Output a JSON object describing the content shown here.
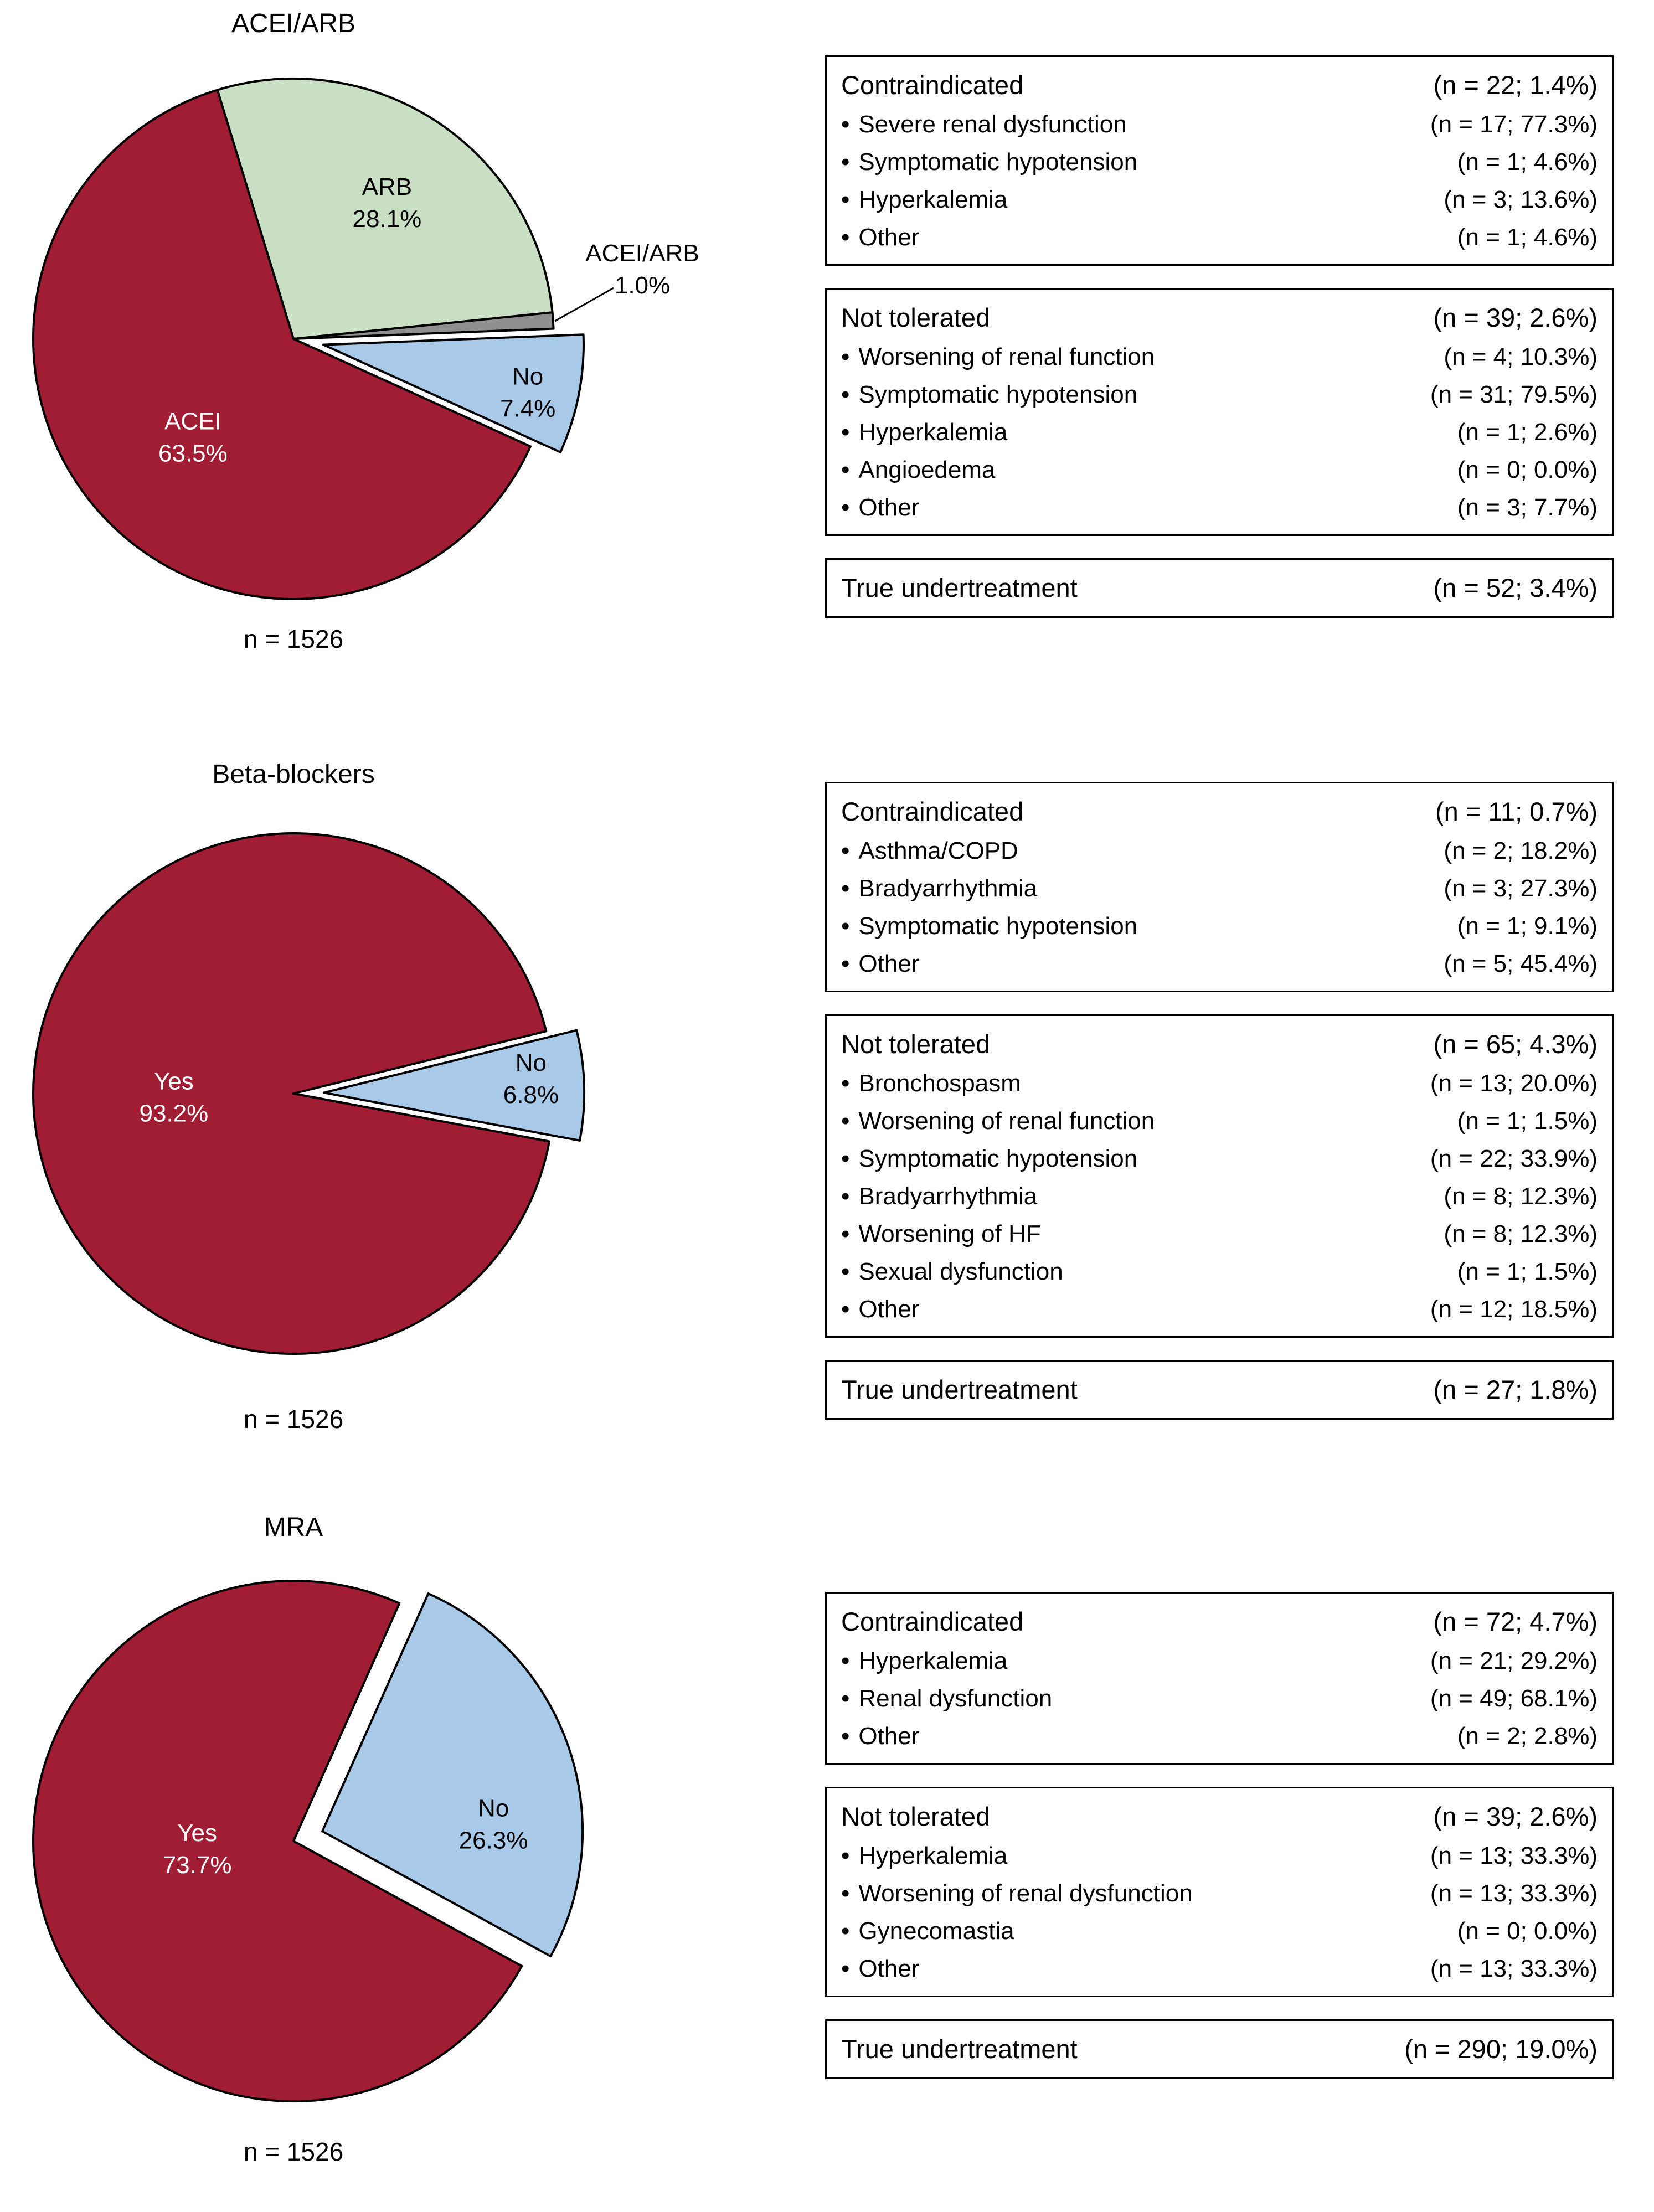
{
  "colors": {
    "yes_red": "#a11d33",
    "arb_green": "#c9e0c4",
    "no_blue": "#a9c9e9",
    "both_gray": "#8f8f8f",
    "outline_black": "#000000",
    "label_white": "#ffffff"
  },
  "chart_data": [
    {
      "type": "pie",
      "title": "ACEI/ARB",
      "sample_label": "n = 1526",
      "categories": [
        "ARB",
        "ACEI/ARB",
        "No",
        "ACEI"
      ],
      "values": [
        28.1,
        1.0,
        7.4,
        63.5
      ],
      "slices": [
        {
          "name": "ARB",
          "label": "ARB",
          "value_label": "28.1%",
          "value": 28.1,
          "color": "#c9e0c4",
          "text_color": "#000000"
        },
        {
          "name": "ACEI/ARB",
          "label": "ACEI/ARB",
          "value_label": "1.0%",
          "value": 1.0,
          "color": "#8f8f8f",
          "text_color": "#000000"
        },
        {
          "name": "No",
          "label": "No",
          "value_label": "7.4%",
          "value": 7.4,
          "color": "#a9c9e9",
          "text_color": "#000000"
        },
        {
          "name": "ACEI",
          "label": "ACEI",
          "value_label": "63.5%",
          "value": 63.5,
          "color": "#a11d33",
          "text_color": "#ffffff"
        }
      ],
      "tables": [
        {
          "title": "Contraindicated",
          "value": "(n = 22; 1.4%)",
          "rows": [
            {
              "label": "Severe renal dysfunction",
              "value": "(n = 17; 77.3%)"
            },
            {
              "label": "Symptomatic hypotension",
              "value": "(n = 1; 4.6%)"
            },
            {
              "label": "Hyperkalemia",
              "value": "(n = 3; 13.6%)"
            },
            {
              "label": "Other",
              "value": "(n = 1; 4.6%)"
            }
          ]
        },
        {
          "title": "Not tolerated",
          "value": "(n = 39; 2.6%)",
          "rows": [
            {
              "label": "Worsening of renal function",
              "value": "(n = 4; 10.3%)"
            },
            {
              "label": "Symptomatic hypotension",
              "value": "(n = 31; 79.5%)"
            },
            {
              "label": "Hyperkalemia",
              "value": "(n = 1; 2.6%)"
            },
            {
              "label": "Angioedema",
              "value": "(n = 0; 0.0%)"
            },
            {
              "label": "Other",
              "value": "(n = 3; 7.7%)"
            }
          ]
        },
        {
          "title": "True undertreatment",
          "value": "(n = 52; 3.4%)",
          "rows": []
        }
      ]
    },
    {
      "type": "pie",
      "title": "Beta-blockers",
      "sample_label": "n = 1526",
      "categories": [
        "Yes",
        "No"
      ],
      "values": [
        93.2,
        6.8
      ],
      "slices": [
        {
          "name": "Yes",
          "label": "Yes",
          "value_label": "93.2%",
          "value": 93.2,
          "color": "#a11d33",
          "text_color": "#ffffff"
        },
        {
          "name": "No",
          "label": "No",
          "value_label": "6.8%",
          "value": 6.8,
          "color": "#a9c9e9",
          "text_color": "#000000"
        }
      ],
      "tables": [
        {
          "title": "Contraindicated",
          "value": "(n = 11; 0.7%)",
          "rows": [
            {
              "label": "Asthma/COPD",
              "value": "(n = 2; 18.2%)"
            },
            {
              "label": "Bradyarrhythmia",
              "value": "(n = 3; 27.3%)"
            },
            {
              "label": "Symptomatic hypotension",
              "value": "(n = 1; 9.1%)"
            },
            {
              "label": "Other",
              "value": "(n = 5; 45.4%)"
            }
          ]
        },
        {
          "title": "Not tolerated",
          "value": "(n = 65; 4.3%)",
          "rows": [
            {
              "label": "Bronchospasm",
              "value": "(n = 13; 20.0%)"
            },
            {
              "label": "Worsening of renal function",
              "value": "(n = 1; 1.5%)"
            },
            {
              "label": "Symptomatic hypotension",
              "value": "(n = 22; 33.9%)"
            },
            {
              "label": "Bradyarrhythmia",
              "value": "(n = 8; 12.3%)"
            },
            {
              "label": "Worsening of HF",
              "value": "(n = 8; 12.3%)"
            },
            {
              "label": "Sexual dysfunction",
              "value": "(n = 1; 1.5%)"
            },
            {
              "label": "Other",
              "value": "(n = 12; 18.5%)"
            }
          ]
        },
        {
          "title": "True undertreatment",
          "value": "(n = 27; 1.8%)",
          "rows": []
        }
      ]
    },
    {
      "type": "pie",
      "title": "MRA",
      "sample_label": "n = 1526",
      "categories": [
        "Yes",
        "No"
      ],
      "values": [
        73.7,
        26.3
      ],
      "slices": [
        {
          "name": "Yes",
          "label": "Yes",
          "value_label": "73.7%",
          "value": 73.7,
          "color": "#a11d33",
          "text_color": "#ffffff"
        },
        {
          "name": "No",
          "label": "No",
          "value_label": "26.3%",
          "value": 26.3,
          "color": "#a9c9e9",
          "text_color": "#000000"
        }
      ],
      "tables": [
        {
          "title": "Contraindicated",
          "value": "(n = 72; 4.7%)",
          "rows": [
            {
              "label": "Hyperkalemia",
              "value": "(n = 21; 29.2%)"
            },
            {
              "label": "Renal dysfunction",
              "value": "(n = 49; 68.1%)"
            },
            {
              "label": "Other",
              "value": "(n = 2; 2.8%)"
            }
          ]
        },
        {
          "title": "Not tolerated",
          "value": "(n = 39; 2.6%)",
          "rows": [
            {
              "label": "Hyperkalemia",
              "value": "(n = 13; 33.3%)"
            },
            {
              "label": "Worsening of renal dysfunction",
              "value": "(n = 13; 33.3%)"
            },
            {
              "label": "Gynecomastia",
              "value": "(n = 0; 0.0%)"
            },
            {
              "label": "Other",
              "value": "(n = 13; 33.3%)"
            }
          ]
        },
        {
          "title": "True undertreatment",
          "value": "(n = 290; 19.0%)",
          "rows": []
        }
      ]
    }
  ]
}
